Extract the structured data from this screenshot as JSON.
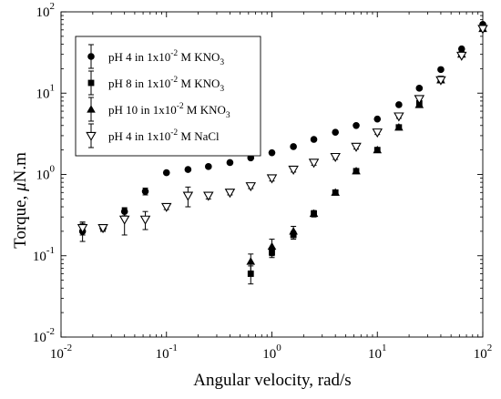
{
  "chart_data": {
    "type": "scatter",
    "title": "",
    "xlabel": "Angular velocity, rad/s",
    "ylabel_text": "Torque, ",
    "ylabel_mu": "μ",
    "ylabel_unit": "N.m",
    "xscale": "log",
    "yscale": "log",
    "xlim": [
      0.01,
      100
    ],
    "ylim": [
      0.01,
      100
    ],
    "grid": false,
    "legend_position": "top-left",
    "x_ticks": [
      {
        "base": "10",
        "exp": "-2",
        "value": 0.01
      },
      {
        "base": "10",
        "exp": "-1",
        "value": 0.1
      },
      {
        "base": "10",
        "exp": "0",
        "value": 1
      },
      {
        "base": "10",
        "exp": "1",
        "value": 10
      },
      {
        "base": "10",
        "exp": "2",
        "value": 100
      }
    ],
    "y_ticks": [
      {
        "base": "10",
        "exp": "-2",
        "value": 0.01
      },
      {
        "base": "10",
        "exp": "-1",
        "value": 0.1
      },
      {
        "base": "10",
        "exp": "0",
        "value": 1
      },
      {
        "base": "10",
        "exp": "1",
        "value": 10
      },
      {
        "base": "10",
        "exp": "2",
        "value": 100
      }
    ],
    "series": [
      {
        "name_main": "pH 4 in 1x10",
        "name_exp": "-2",
        "name_tail": " M KNO",
        "name_sub": "3",
        "marker": "circle",
        "x": [
          0.016,
          0.025,
          0.04,
          0.063,
          0.1,
          0.16,
          0.25,
          0.4,
          0.63,
          1.0,
          1.6,
          2.5,
          4.0,
          6.3,
          10,
          16,
          25,
          40,
          63,
          100
        ],
        "y": [
          0.2,
          0.22,
          0.35,
          0.62,
          1.05,
          1.15,
          1.25,
          1.4,
          1.6,
          1.85,
          2.2,
          2.7,
          3.3,
          4.0,
          4.8,
          7.2,
          11.5,
          19.5,
          35,
          70
        ],
        "err": [
          0.05,
          0.02,
          0.04,
          0.06,
          0.05,
          0.05,
          0.05,
          0.05,
          0.06,
          0.06,
          0.07,
          0.08,
          0.1,
          0.1,
          0.15,
          0.2,
          0.3,
          0.5,
          1,
          2
        ]
      },
      {
        "name_main": "pH 8 in 1x10",
        "name_exp": "-2",
        "name_tail": " M KNO",
        "name_sub": "3",
        "marker": "square",
        "x": [
          0.63,
          1.0,
          1.6,
          2.5,
          4.0,
          6.3,
          10,
          16,
          25,
          40,
          63,
          100
        ],
        "y": [
          0.06,
          0.11,
          0.18,
          0.33,
          0.6,
          1.1,
          2.0,
          3.8,
          7.5,
          15,
          30,
          62
        ],
        "err": [
          0.015,
          0.015,
          0.02,
          0.02,
          0.03,
          0.05,
          0.08,
          0.1,
          0.3,
          0.5,
          1,
          2
        ]
      },
      {
        "name_main": "pH 10 in 1x10",
        "name_exp": "-2",
        "name_tail": " M KNO",
        "name_sub": "3",
        "marker": "triangle-up",
        "x": [
          0.63,
          1.0,
          1.6,
          2.5,
          4.0,
          6.3,
          10,
          16,
          25,
          40,
          63,
          100
        ],
        "y": [
          0.085,
          0.13,
          0.2,
          0.33,
          0.6,
          1.1,
          2.0,
          3.8,
          7.2,
          14.5,
          30,
          62
        ],
        "err": [
          0.02,
          0.03,
          0.03,
          0.03,
          0.04,
          0.06,
          0.1,
          0.15,
          0.3,
          0.6,
          1,
          2
        ]
      },
      {
        "name_main": "pH 4 in 1x10",
        "name_exp": "-2",
        "name_tail": " M NaCl",
        "name_sub": "",
        "marker": "triangle-down-open",
        "x": [
          0.016,
          0.025,
          0.04,
          0.063,
          0.1,
          0.16,
          0.25,
          0.4,
          0.63,
          1.0,
          1.6,
          2.5,
          4.0,
          6.3,
          10,
          16,
          25,
          40,
          63,
          100
        ],
        "y": [
          0.22,
          0.22,
          0.28,
          0.28,
          0.4,
          0.55,
          0.55,
          0.6,
          0.72,
          0.9,
          1.15,
          1.4,
          1.65,
          2.2,
          3.3,
          5.2,
          8.5,
          14.5,
          29,
          62
        ],
        "err": [
          0.04,
          0.02,
          0.1,
          0.07,
          0.03,
          0.15,
          0.05,
          0.04,
          0.05,
          0.07,
          0.08,
          0.1,
          0.12,
          0.15,
          0.2,
          0.3,
          0.4,
          0.6,
          1,
          2
        ]
      }
    ]
  },
  "colors": {
    "marker": "#000000",
    "axis": "#000000",
    "legend_border": "#000000"
  }
}
